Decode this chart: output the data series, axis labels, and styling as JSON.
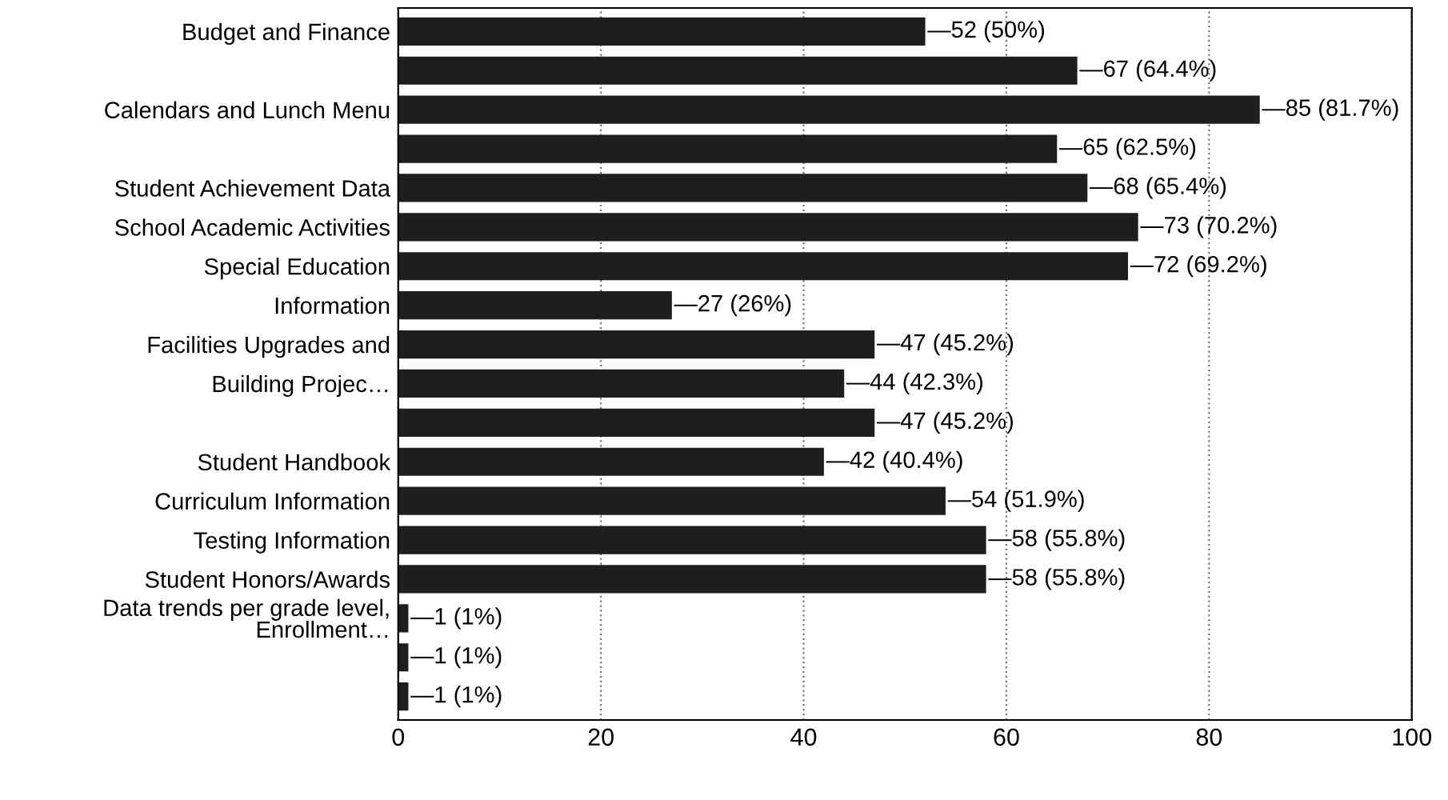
{
  "chart_data": {
    "type": "bar",
    "orientation": "horizontal",
    "categories": [
      "Budget and Finance",
      null,
      "Calendars and Lunch Menu",
      null,
      "Student Achievement Data",
      "School Academic Activities",
      "Special Education",
      "Information",
      "Facilities Upgrades and",
      "Building Projec…",
      null,
      "Student Handbook",
      "Curriculum Information",
      "Testing Information",
      "Student Honors/Awards",
      "Data trends per grade level,\nEnrollment…",
      null,
      null
    ],
    "values": [
      52,
      67,
      85,
      65,
      68,
      73,
      72,
      27,
      47,
      44,
      47,
      42,
      54,
      58,
      58,
      1,
      1,
      1
    ],
    "value_labels": [
      "—52 (50%)",
      "—67 (64.4%)",
      "—85 (81.7%)",
      "—65 (62.5%)",
      "—68 (65.4%)",
      "—73 (70.2%)",
      "—72 (69.2%)",
      "—27 (26%)",
      "—47 (45.2%)",
      "—44 (42.3%)",
      "—47 (45.2%)",
      "—42 (40.4%)",
      "—54 (51.9%)",
      "—58 (55.8%)",
      "—58 (55.8%)",
      "—1 (1%)",
      "—1 (1%)",
      "—1 (1%)"
    ],
    "color": "#1e1e1e",
    "xlim": [
      0,
      100
    ],
    "xticks": [
      0,
      20,
      40,
      60,
      80,
      100
    ],
    "grid": "x"
  }
}
